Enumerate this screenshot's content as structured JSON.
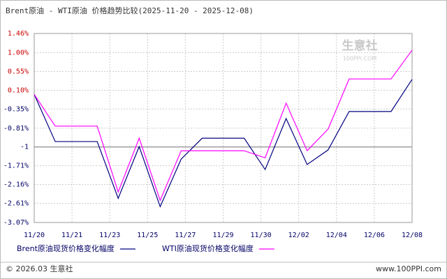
{
  "chart_data": {
    "type": "line",
    "title": "Brent原油 - WTI原油 价格趋势比较(2025-11-20 - 2025-12-08)",
    "x": [
      0,
      1,
      2,
      3,
      4,
      5,
      6,
      7,
      8,
      9,
      10,
      11,
      12,
      13,
      14,
      15,
      16,
      17,
      18
    ],
    "xlim": [
      0,
      18
    ],
    "xticks": [
      {
        "value": 0,
        "label": "11/20"
      },
      {
        "value": 1.8,
        "label": "11/21"
      },
      {
        "value": 3.6,
        "label": "11/23"
      },
      {
        "value": 5.4,
        "label": "11/25"
      },
      {
        "value": 7.2,
        "label": "11/27"
      },
      {
        "value": 9,
        "label": "11/29"
      },
      {
        "value": 10.8,
        "label": "11/30"
      },
      {
        "value": 12.6,
        "label": "12/02"
      },
      {
        "value": 14.4,
        "label": "12/04"
      },
      {
        "value": 16.2,
        "label": "12/06"
      },
      {
        "value": 18,
        "label": "12/08"
      }
    ],
    "ylim": [
      -3.07,
      1.46
    ],
    "yticks": [
      {
        "value": 1.46,
        "label": "1.46%"
      },
      {
        "value": 1.0,
        "label": "1.00%"
      },
      {
        "value": 0.55,
        "label": "0.55%"
      },
      {
        "value": 0.1,
        "label": "0.10%"
      },
      {
        "value": -0.35,
        "label": "-0.35%"
      },
      {
        "value": -0.81,
        "label": "-0.81%"
      },
      {
        "value": -1.26,
        "label": "-1"
      },
      {
        "value": -1.71,
        "label": "-1.71%"
      },
      {
        "value": -2.16,
        "label": "-2.16%"
      },
      {
        "value": -2.61,
        "label": "-2.61%"
      },
      {
        "value": -3.07,
        "label": "-3.07%"
      }
    ],
    "reference_line": -1.26,
    "grid": true,
    "series": [
      {
        "name": "Brent原油现货价格变化幅度",
        "color": "#000080",
        "values": [
          0.0,
          -1.13,
          -1.13,
          -1.13,
          -2.49,
          -1.25,
          -2.69,
          -1.55,
          -1.05,
          -1.05,
          -1.05,
          -1.8,
          -0.58,
          -1.68,
          -1.33,
          -0.41,
          -0.41,
          -0.41,
          0.36
        ]
      },
      {
        "name": "WTI原油现货价格变化幅度",
        "color": "#ff00ff",
        "values": [
          0.0,
          -0.76,
          -0.76,
          -0.76,
          -2.34,
          -1.05,
          -2.54,
          -1.35,
          -1.35,
          -1.35,
          -1.35,
          -1.52,
          -0.21,
          -1.35,
          -0.83,
          0.37,
          0.37,
          0.37,
          1.06
        ]
      }
    ],
    "watermark": [
      "生意社",
      "100PPI.COM"
    ],
    "footer": {
      "left": "© 2026.03 生意社",
      "right": "www.100PPI.com"
    }
  }
}
